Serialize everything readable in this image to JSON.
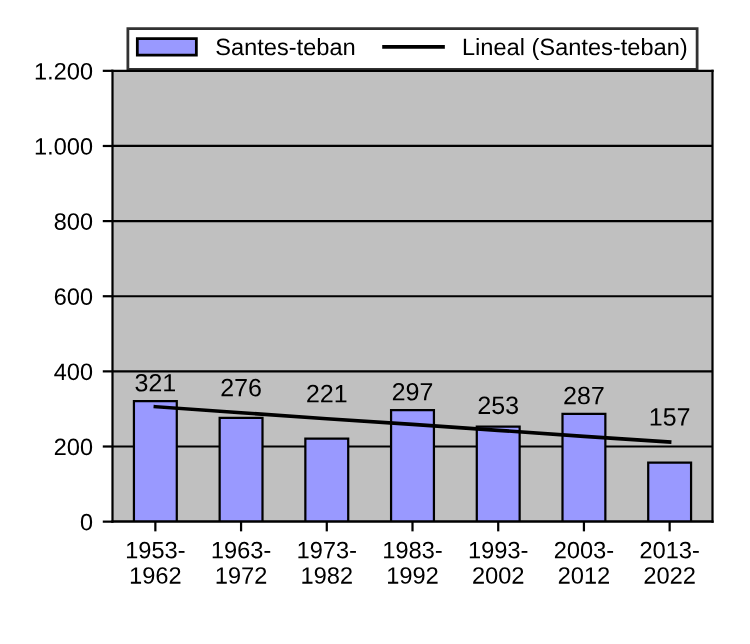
{
  "chart_data": {
    "type": "bar",
    "categories": [
      "1953-\n1962",
      "1963-\n1972",
      "1973-\n1982",
      "1983-\n1992",
      "1993-\n2002",
      "2003-\n2012",
      "2013-\n2022"
    ],
    "series": [
      {
        "name": "Santes-teban",
        "color": "#9999ff",
        "values": [
          321,
          276,
          221,
          297,
          253,
          287,
          157
        ],
        "value_labels": [
          "321",
          "276",
          "221",
          "297",
          "253",
          "287",
          "157"
        ]
      },
      {
        "name": "Lineal (Santes-teban)",
        "type": "line",
        "color": "#000000",
        "values": [
          306,
          290,
          274,
          259,
          243,
          227,
          212
        ]
      }
    ],
    "ylim": [
      0,
      1200
    ],
    "yticks": [
      0,
      200,
      400,
      600,
      800,
      {
        "value": 1000,
        "label": "1.000"
      },
      {
        "value": 1200,
        "label": "1.200"
      }
    ],
    "grid": "y",
    "legend": "top"
  }
}
